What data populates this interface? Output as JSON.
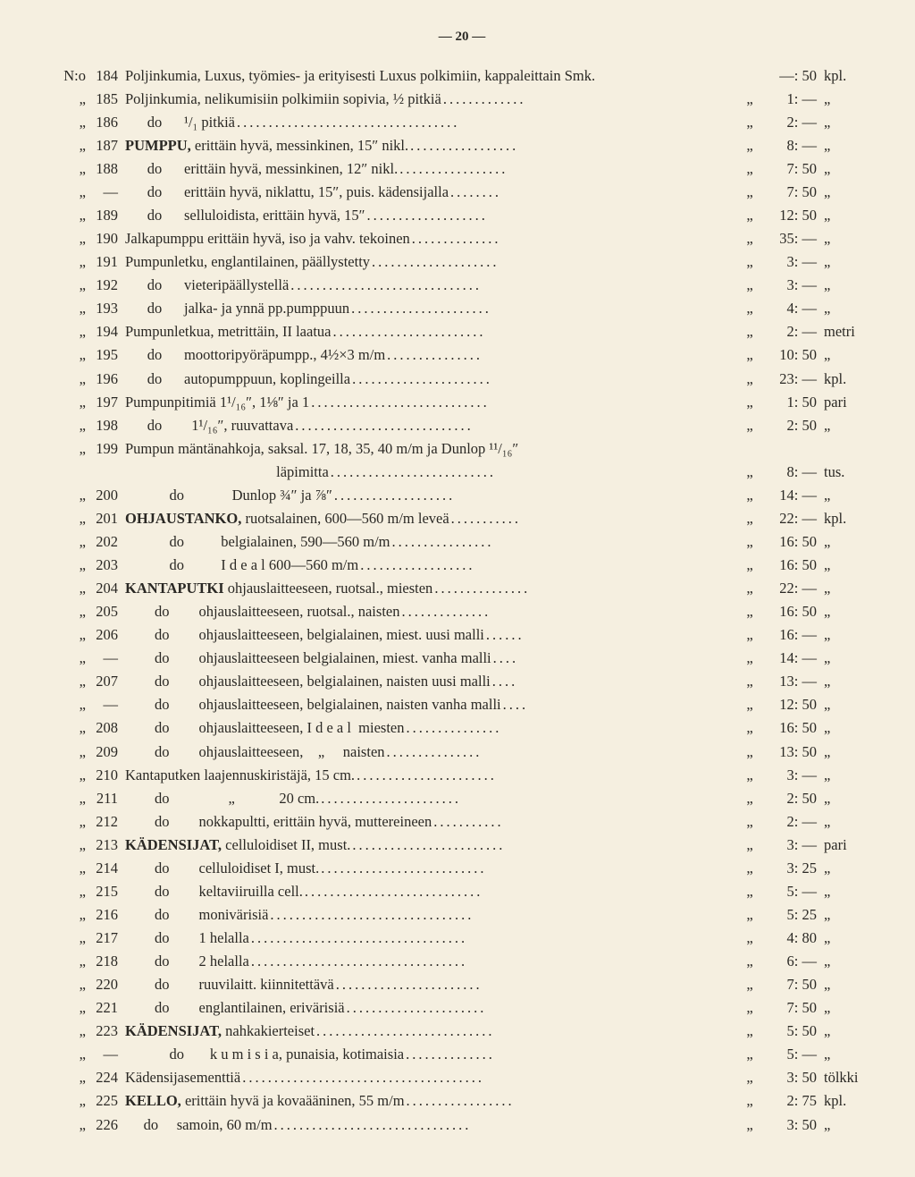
{
  "page_number": "— 20 —",
  "rows": [
    {
      "prefix": "N:o",
      "num": "184",
      "desc": "Poljinkumia, Luxus, työmies- ja erityisesti Luxus polkimiin, kappaleittain Smk.",
      "leader": "",
      "ditto": "",
      "price": "—: 50",
      "unit": "kpl."
    },
    {
      "prefix": "„",
      "num": "185",
      "desc": "Poljinkumia, nelikumisiin polkimiin sopivia, ½ pitkiä",
      "leader": ".............",
      "ditto": "„",
      "price": "1: —",
      "unit": "„"
    },
    {
      "prefix": "„",
      "num": "186",
      "desc": "      do      ¹/₁ pitkiä",
      "leader": "...................................",
      "ditto": "„",
      "price": "2: —",
      "unit": "„"
    },
    {
      "prefix": "„",
      "num": "187",
      "desc": "<b>PUMPPU,</b> erittäin hyvä, messinkinen, 15″ nikl.",
      "leader": ".................",
      "ditto": "„",
      "price": "8: —",
      "unit": "„"
    },
    {
      "prefix": "„",
      "num": "188",
      "desc": "      do      erittäin hyvä, messinkinen, 12″ nikl.",
      "leader": ".................",
      "ditto": "„",
      "price": "7: 50",
      "unit": "„"
    },
    {
      "prefix": "„",
      "num": "—",
      "desc": "      do      erittäin hyvä, niklattu, 15″, puis. kädensijalla",
      "leader": "........",
      "ditto": "„",
      "price": "7: 50",
      "unit": "„"
    },
    {
      "prefix": "„",
      "num": "189",
      "desc": "      do      selluloidista, erittäin hyvä, 15″",
      "leader": "...................",
      "ditto": "„",
      "price": "12: 50",
      "unit": "„"
    },
    {
      "prefix": "„",
      "num": "190",
      "desc": "Jalkapumppu erittäin hyvä, iso ja vahv. tekoinen",
      "leader": "..............",
      "ditto": "„",
      "price": "35: —",
      "unit": "„"
    },
    {
      "prefix": "„",
      "num": "191",
      "desc": "Pumpunletku, englantilainen, päällystetty",
      "leader": "....................",
      "ditto": "„",
      "price": "3: —",
      "unit": "„"
    },
    {
      "prefix": "„",
      "num": "192",
      "desc": "      do      vieteripäällystellä",
      "leader": "..............................",
      "ditto": "„",
      "price": "3: —",
      "unit": "„"
    },
    {
      "prefix": "„",
      "num": "193",
      "desc": "      do      jalka- ja ynnä pp.pumppuun",
      "leader": "......................",
      "ditto": "„",
      "price": "4: —",
      "unit": "„"
    },
    {
      "prefix": "„",
      "num": "194",
      "desc": "Pumpunletkua, metrittäin, II laatua",
      "leader": "........................",
      "ditto": "„",
      "price": "2: —",
      "unit": "metri"
    },
    {
      "prefix": "„",
      "num": "195",
      "desc": "      do      moottoripyöräpumpp., 4½×3 m/m",
      "leader": "...............",
      "ditto": "„",
      "price": "10: 50",
      "unit": "„"
    },
    {
      "prefix": "„",
      "num": "196",
      "desc": "      do      autopumppuun, koplingeilla",
      "leader": "......................",
      "ditto": "„",
      "price": "23: —",
      "unit": "kpl."
    },
    {
      "prefix": "„",
      "num": "197",
      "desc": "Pumpunpitimiä 1¹/₁₆″, 1⅛″ ja 1",
      "leader": "............................",
      "ditto": "„",
      "price": "1: 50",
      "unit": "pari"
    },
    {
      "prefix": "„",
      "num": "198",
      "desc": "      do        1¹/₁₆″, ruuvattava",
      "leader": "............................",
      "ditto": "„",
      "price": "2: 50",
      "unit": "„"
    },
    {
      "prefix": "„",
      "num": "199",
      "desc": "Pumpun mäntänahkoja, saksal. 17, 18, 35, 40 m/m ja Dunlop ¹¹/₁₆″",
      "leader": "",
      "ditto": "",
      "price": "",
      "unit": ""
    },
    {
      "prefix": "",
      "num": "",
      "desc": "                                         läpimitta",
      "leader": "..........................",
      "ditto": "„",
      "price": "8: —",
      "unit": "tus."
    },
    {
      "prefix": "„",
      "num": "200",
      "desc": "            do             Dunlop ¾″ ja ⅞″",
      "leader": "...................",
      "ditto": "„",
      "price": "14: —",
      "unit": "„"
    },
    {
      "prefix": "„",
      "num": "201",
      "desc": "<b>OHJAUSTANKO,</b> ruotsalainen, 600—560 m/m leveä",
      "leader": "...........",
      "ditto": "„",
      "price": "22: —",
      "unit": "kpl."
    },
    {
      "prefix": "„",
      "num": "202",
      "desc": "            do          belgialainen, 590—560 m/m",
      "leader": "................",
      "ditto": "„",
      "price": "16: 50",
      "unit": "„"
    },
    {
      "prefix": "„",
      "num": "203",
      "desc": "            do          I d e a l 600—560 m/m",
      "leader": "..................",
      "ditto": "„",
      "price": "16: 50",
      "unit": "„"
    },
    {
      "prefix": "„",
      "num": "204",
      "desc": "<b>KANTAPUTKI</b> ohjauslaitteeseen, ruotsal., miesten",
      "leader": "...............",
      "ditto": "„",
      "price": "22: —",
      "unit": "„"
    },
    {
      "prefix": "„",
      "num": "205",
      "desc": "        do        ohjauslaitteeseen, ruotsal., naisten",
      "leader": "..............",
      "ditto": "„",
      "price": "16: 50",
      "unit": "„"
    },
    {
      "prefix": "„",
      "num": "206",
      "desc": "        do        ohjauslaitteeseen, belgialainen, miest. uusi malli",
      "leader": "......",
      "ditto": "„",
      "price": "16: —",
      "unit": "„"
    },
    {
      "prefix": "„",
      "num": "—",
      "desc": "        do        ohjauslaitteeseen belgialainen, miest. vanha malli",
      "leader": "....",
      "ditto": "„",
      "price": "14: —",
      "unit": "„"
    },
    {
      "prefix": "„",
      "num": "207",
      "desc": "        do        ohjauslaitteeseen, belgialainen, naisten uusi malli",
      "leader": "....",
      "ditto": "„",
      "price": "13: —",
      "unit": "„"
    },
    {
      "prefix": "„",
      "num": "—",
      "desc": "        do        ohjauslaitteeseen, belgialainen, naisten vanha malli",
      "leader": "....",
      "ditto": "„",
      "price": "12: 50",
      "unit": "„"
    },
    {
      "prefix": "„",
      "num": "208",
      "desc": "        do        ohjauslaitteeseen, I d e a l  miesten",
      "leader": "...............",
      "ditto": "„",
      "price": "16: 50",
      "unit": "„"
    },
    {
      "prefix": "„",
      "num": "209",
      "desc": "        do        ohjauslaitteeseen,    „     naisten",
      "leader": "...............",
      "ditto": "„",
      "price": "13: 50",
      "unit": "„"
    },
    {
      "prefix": "„",
      "num": "210",
      "desc": "Kantaputken laajennuskiristäjä, 15 cm.",
      "leader": "......................",
      "ditto": "„",
      "price": "3: —",
      "unit": "„"
    },
    {
      "prefix": "„",
      "num": "211",
      "desc": "        do                „            20 cm.",
      "leader": "......................",
      "ditto": "„",
      "price": "2: 50",
      "unit": "„"
    },
    {
      "prefix": "„",
      "num": "212",
      "desc": "        do        nokkapultti, erittäin hyvä, muttereineen",
      "leader": "...........",
      "ditto": "„",
      "price": "2: —",
      "unit": "„"
    },
    {
      "prefix": "„",
      "num": "213",
      "desc": "<b>KÄDENSIJAT,</b> celluloidiset II, must.",
      "leader": "........................",
      "ditto": "„",
      "price": "3: —",
      "unit": "pari"
    },
    {
      "prefix": "„",
      "num": "214",
      "desc": "        do        celluloidiset I, must.",
      "leader": "..........................",
      "ditto": "„",
      "price": "3: 25",
      "unit": "„"
    },
    {
      "prefix": "„",
      "num": "215",
      "desc": "        do        keltaviiruilla cell.",
      "leader": "............................",
      "ditto": "„",
      "price": "5: —",
      "unit": "„"
    },
    {
      "prefix": "„",
      "num": "216",
      "desc": "        do        monivärisiä",
      "leader": "................................",
      "ditto": "„",
      "price": "5: 25",
      "unit": "„"
    },
    {
      "prefix": "„",
      "num": "217",
      "desc": "        do        1 helalla",
      "leader": "..................................",
      "ditto": "„",
      "price": "4: 80",
      "unit": "„"
    },
    {
      "prefix": "„",
      "num": "218",
      "desc": "        do        2 helalla",
      "leader": "..................................",
      "ditto": "„",
      "price": "6: —",
      "unit": "„"
    },
    {
      "prefix": "„",
      "num": "220",
      "desc": "        do        ruuvilaitt. kiinnitettävä",
      "leader": ".......................",
      "ditto": "„",
      "price": "7: 50",
      "unit": "„"
    },
    {
      "prefix": "„",
      "num": "221",
      "desc": "        do        englantilainen, erivärisiä",
      "leader": "......................",
      "ditto": "„",
      "price": "7: 50",
      "unit": "„"
    },
    {
      "prefix": "„",
      "num": "223",
      "desc": "<b>KÄDENSIJAT,</b> nahkakierteiset",
      "leader": "............................",
      "ditto": "„",
      "price": "5: 50",
      "unit": "„"
    },
    {
      "prefix": "„",
      "num": "—",
      "desc": "            do       k u m i s i a, punaisia, kotimaisia",
      "leader": "..............",
      "ditto": "„",
      "price": "5: —",
      "unit": "„"
    },
    {
      "prefix": "„",
      "num": "224",
      "desc": "Kädensijasementtiä",
      "leader": "......................................",
      "ditto": "„",
      "price": "3: 50",
      "unit": "tölkki"
    },
    {
      "prefix": "„",
      "num": "225",
      "desc": "<b>KELLO,</b> erittäin hyvä ja kovaääninen, 55 m/m",
      "leader": ".................",
      "ditto": "„",
      "price": "2: 75",
      "unit": "kpl."
    },
    {
      "prefix": "„",
      "num": "226",
      "desc": "     do     samoin, 60 m/m",
      "leader": "...............................",
      "ditto": "„",
      "price": "3: 50",
      "unit": "„"
    }
  ]
}
